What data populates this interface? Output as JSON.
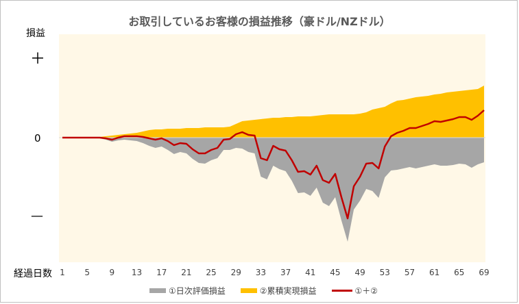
{
  "chart_data": {
    "type": "area",
    "title": "お取引しているお客様の損益推移（豪ドル/NZドル）",
    "ylabel": "損益",
    "xlabel": "経過日数",
    "y_tick_labels": [
      "＋",
      "0",
      "—"
    ],
    "x_tick_labels": [
      "1",
      "5",
      "9",
      "13",
      "17",
      "21",
      "25",
      "29",
      "33",
      "37",
      "41",
      "45",
      "49",
      "53",
      "57",
      "61",
      "65",
      "69"
    ],
    "x": [
      1,
      2,
      3,
      4,
      5,
      6,
      7,
      8,
      9,
      10,
      11,
      12,
      13,
      14,
      15,
      16,
      17,
      18,
      19,
      20,
      21,
      22,
      23,
      24,
      25,
      26,
      27,
      28,
      29,
      30,
      31,
      32,
      33,
      34,
      35,
      36,
      37,
      38,
      39,
      40,
      41,
      42,
      43,
      44,
      45,
      46,
      47,
      48,
      49,
      50,
      51,
      52,
      53,
      54,
      55,
      56,
      57,
      58,
      59,
      60,
      61,
      62,
      63,
      64,
      65,
      66,
      67,
      68,
      69
    ],
    "units_note": "relative units (no numeric scale shown); 0 = break-even",
    "ylim": [
      -182,
      151
    ],
    "grid": false,
    "legend_position": "bottom",
    "series": [
      {
        "name": "①日次評価損益",
        "type": "area",
        "color": "#a6a6a6",
        "values": [
          0,
          0,
          0,
          0,
          0,
          0,
          -1,
          -3,
          -6,
          -4,
          -3,
          -4,
          -5,
          -8,
          -12,
          -15,
          -13,
          -18,
          -24,
          -21,
          -23,
          -31,
          -37,
          -38,
          -33,
          -30,
          -18,
          -18,
          -15,
          -16,
          -21,
          -23,
          -57,
          -61,
          -41,
          -46,
          -49,
          -63,
          -81,
          -80,
          -85,
          -73,
          -95,
          -100,
          -87,
          -121,
          -152,
          -105,
          -92,
          -75,
          -78,
          -88,
          -58,
          -48,
          -47,
          -45,
          -43,
          -45,
          -43,
          -41,
          -39,
          -41,
          -41,
          -40,
          -38,
          -39,
          -44,
          -39,
          -36
        ]
      },
      {
        "name": "②累積実現損益",
        "type": "area",
        "color": "#ffc000",
        "values": [
          0,
          0,
          0,
          0,
          0,
          0,
          1,
          2,
          3,
          4,
          5,
          6,
          7,
          9,
          11,
          12,
          12,
          13,
          13,
          13,
          14,
          14,
          14,
          15,
          15,
          15,
          15,
          16,
          20,
          24,
          25,
          26,
          27,
          28,
          29,
          29,
          30,
          30,
          31,
          31,
          31,
          32,
          33,
          34,
          34,
          34,
          34,
          34,
          35,
          37,
          41,
          43,
          45,
          50,
          54,
          55,
          57,
          59,
          60,
          61,
          63,
          64,
          66,
          67,
          68,
          69,
          70,
          71,
          76
        ]
      },
      {
        "name": "①＋②",
        "type": "line",
        "color": "#c00000"
      }
    ]
  }
}
